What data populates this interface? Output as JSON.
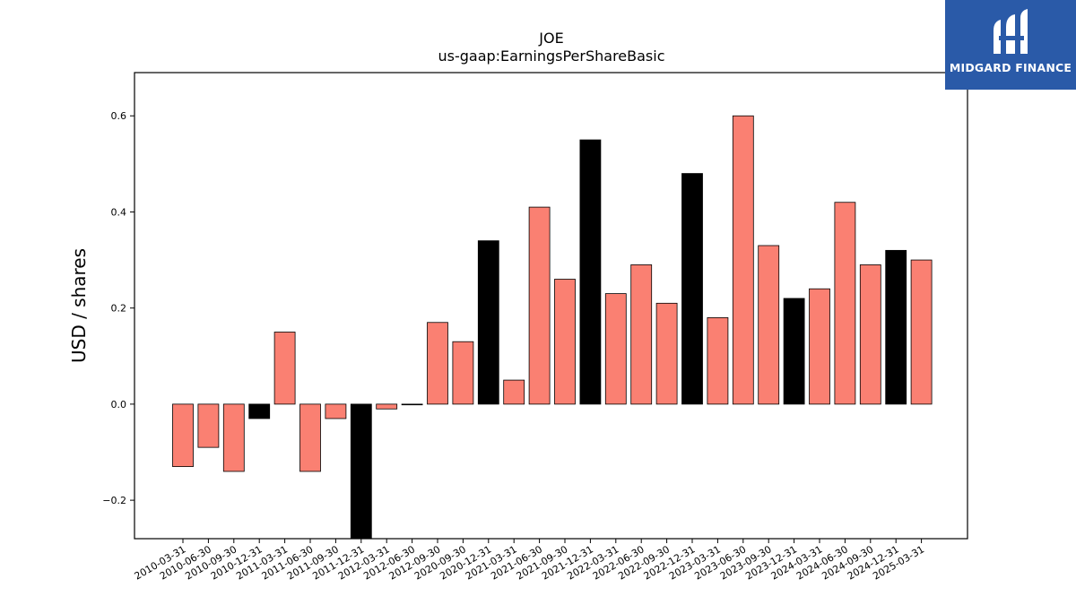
{
  "logo": {
    "text": "MIDGARD FINANCE",
    "background": "#2a5aa8"
  },
  "chart_data": {
    "type": "bar",
    "title": "JOE",
    "subtitle": "us-gaap:EarningsPerShareBasic",
    "xlabel": "",
    "ylabel": "USD / shares",
    "ylim": [
      -0.28,
      0.69
    ],
    "yticks": [
      -0.2,
      0.0,
      0.2,
      0.4,
      0.6
    ],
    "ytick_labels": [
      "−0.2",
      "0.0",
      "0.2",
      "0.4",
      "0.6"
    ],
    "grid": false,
    "colors": {
      "quarter": "#fa8072",
      "year_end": "#000000"
    },
    "categories": [
      "2010-03-31",
      "2010-06-30",
      "2010-09-30",
      "2010-12-31",
      "2011-03-31",
      "2011-06-30",
      "2011-09-30",
      "2011-12-31",
      "2012-03-31",
      "2012-06-30",
      "2012-09-30",
      "2020-09-30",
      "2020-12-31",
      "2021-03-31",
      "2021-06-30",
      "2021-09-30",
      "2021-12-31",
      "2022-03-31",
      "2022-06-30",
      "2022-09-30",
      "2022-12-31",
      "2023-03-31",
      "2023-06-30",
      "2023-09-30",
      "2023-12-31",
      "2024-03-31",
      "2024-06-30",
      "2024-09-30",
      "2024-12-31",
      "2025-03-31"
    ],
    "values": [
      -0.13,
      -0.09,
      -0.14,
      -0.03,
      0.15,
      -0.14,
      -0.03,
      -0.3,
      -0.01,
      0.0,
      0.17,
      0.13,
      0.34,
      0.05,
      0.41,
      0.26,
      0.55,
      0.23,
      0.29,
      0.21,
      0.48,
      0.18,
      0.6,
      0.33,
      0.22,
      0.24,
      0.42,
      0.29,
      0.32,
      0.3
    ],
    "year_end": [
      false,
      false,
      false,
      true,
      false,
      false,
      false,
      true,
      false,
      false,
      false,
      false,
      true,
      false,
      false,
      false,
      true,
      false,
      false,
      false,
      true,
      false,
      false,
      false,
      true,
      false,
      false,
      false,
      true,
      false
    ]
  }
}
